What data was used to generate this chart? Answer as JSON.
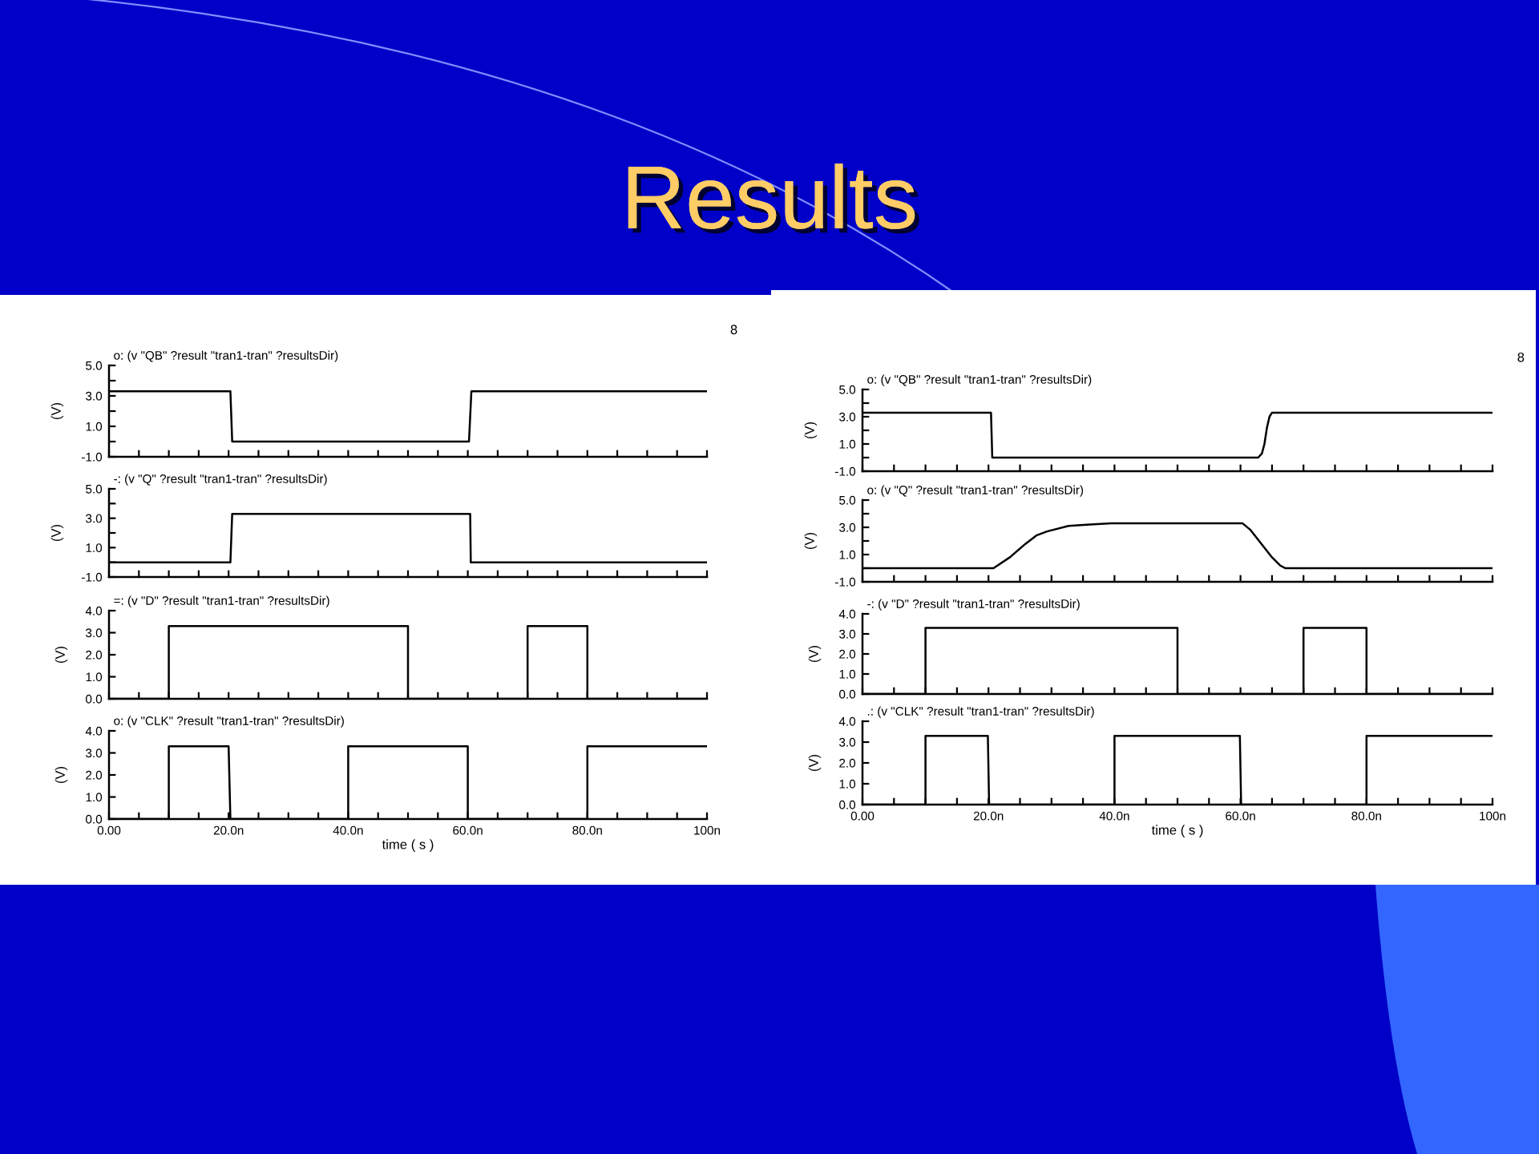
{
  "chart_data": [
    {
      "type": "line",
      "title": "Results",
      "subtitle": "o: (v \"QB\" ?result \"tran1-tran\" ?resultsDir)",
      "ylabel": "(V)",
      "annotations": [
        "8"
      ],
      "tick_labels": "y",
      "xlim": [
        0,
        100
      ],
      "ylim": [
        -1,
        5
      ],
      "xticks": [
        0,
        5,
        10,
        15,
        20,
        25,
        30,
        35,
        40,
        45,
        50,
        55,
        60,
        65,
        70,
        75,
        80,
        85,
        90,
        95,
        100
      ],
      "yticks": [
        {
          "value": -1,
          "label": "-1.0"
        },
        {
          "value": 0,
          "label": null
        },
        {
          "value": 1,
          "label": "1.0"
        },
        {
          "value": 2,
          "label": null
        },
        {
          "value": 3,
          "label": "3.0"
        },
        {
          "value": 4,
          "label": null
        },
        {
          "value": 5,
          "label": "5.0"
        }
      ],
      "series": [
        {
          "color": "#000000",
          "x": [
            0,
            20.3,
            20.6,
            60.2,
            60.6,
            100
          ],
          "values": [
            3.3,
            3.3,
            0,
            0,
            3.3,
            3.3
          ]
        }
      ]
    },
    {
      "type": "line",
      "subtitle": "-: (v \"Q\" ?result \"tran1-tran\" ?resultsDir)",
      "ylabel": "(V)",
      "tick_labels": "y",
      "xlim": [
        0,
        100
      ],
      "ylim": [
        -1,
        5
      ],
      "xticks": [
        0,
        5,
        10,
        15,
        20,
        25,
        30,
        35,
        40,
        45,
        50,
        55,
        60,
        65,
        70,
        75,
        80,
        85,
        90,
        95,
        100
      ],
      "yticks": [
        {
          "value": -1,
          "label": "-1.0"
        },
        {
          "value": 0,
          "label": null
        },
        {
          "value": 1,
          "label": "1.0"
        },
        {
          "value": 2,
          "label": null
        },
        {
          "value": 3,
          "label": "3.0"
        },
        {
          "value": 4,
          "label": null
        },
        {
          "value": 5,
          "label": "5.0"
        }
      ],
      "series": [
        {
          "color": "#000000",
          "x": [
            0,
            20.3,
            20.6,
            60.4,
            60.5,
            100
          ],
          "values": [
            0,
            0,
            3.3,
            3.3,
            0,
            0
          ]
        }
      ]
    },
    {
      "type": "line",
      "subtitle": "=: (v \"D\" ?result \"tran1-tran\" ?resultsDir)",
      "ylabel": "(V)",
      "tick_labels": "y",
      "xlim": [
        0,
        100
      ],
      "ylim": [
        0,
        4
      ],
      "xticks": [
        0,
        5,
        10,
        15,
        20,
        25,
        30,
        35,
        40,
        45,
        50,
        55,
        60,
        65,
        70,
        75,
        80,
        85,
        90,
        95,
        100
      ],
      "yticks": [
        {
          "value": 0,
          "label": "0.0"
        },
        {
          "value": 1,
          "label": "1.0"
        },
        {
          "value": 2,
          "label": "2.0"
        },
        {
          "value": 3,
          "label": "3.0"
        },
        {
          "value": 4,
          "label": "4.0"
        }
      ],
      "series": [
        {
          "color": "#000000",
          "x": [
            0,
            10,
            10,
            50,
            50,
            70,
            70,
            80,
            80,
            100
          ],
          "values": [
            0,
            0,
            3.3,
            3.3,
            0,
            0,
            3.3,
            3.3,
            0,
            0
          ]
        }
      ]
    },
    {
      "type": "line",
      "subtitle": "o: (v \"CLK\" ?result \"tran1-tran\" ?resultsDir)",
      "ylabel": "(V)",
      "xlabel": "time ( s )",
      "xlim": [
        0,
        100
      ],
      "ylim": [
        0,
        4
      ],
      "xticks": [
        {
          "value": 0,
          "label": "0.00"
        },
        {
          "value": 5,
          "label": null
        },
        {
          "value": 10,
          "label": null
        },
        {
          "value": 15,
          "label": null
        },
        {
          "value": 20,
          "label": "20.0n"
        },
        {
          "value": 25,
          "label": null
        },
        {
          "value": 30,
          "label": null
        },
        {
          "value": 35,
          "label": null
        },
        {
          "value": 40,
          "label": "40.0n"
        },
        {
          "value": 45,
          "label": null
        },
        {
          "value": 50,
          "label": null
        },
        {
          "value": 55,
          "label": null
        },
        {
          "value": 60,
          "label": "60.0n"
        },
        {
          "value": 65,
          "label": null
        },
        {
          "value": 70,
          "label": null
        },
        {
          "value": 75,
          "label": null
        },
        {
          "value": 80,
          "label": "80.0n"
        },
        {
          "value": 85,
          "label": null
        },
        {
          "value": 90,
          "label": null
        },
        {
          "value": 95,
          "label": null
        },
        {
          "value": 100,
          "label": "100n"
        }
      ],
      "yticks": [
        {
          "value": 0,
          "label": "0.0"
        },
        {
          "value": 1,
          "label": "1.0"
        },
        {
          "value": 2,
          "label": "2.0"
        },
        {
          "value": 3,
          "label": "3.0"
        },
        {
          "value": 4,
          "label": "4.0"
        }
      ],
      "series": [
        {
          "color": "#000000",
          "x": [
            0,
            10,
            10,
            20,
            20.3,
            40,
            40,
            60,
            60,
            80,
            80,
            100
          ],
          "values": [
            0,
            0,
            3.3,
            3.3,
            0,
            0,
            3.3,
            3.3,
            0,
            0,
            3.3,
            3.3
          ]
        }
      ]
    },
    {
      "type": "line",
      "subtitle": "o: (v \"QB\" ?result \"tran1-tran\" ?resultsDir)",
      "ylabel": "(V)",
      "annotations": [
        "8"
      ],
      "tick_labels": "y",
      "xlim": [
        0,
        100
      ],
      "ylim": [
        -1,
        5
      ],
      "xticks": [
        0,
        5,
        10,
        15,
        20,
        25,
        30,
        35,
        40,
        45,
        50,
        55,
        60,
        65,
        70,
        75,
        80,
        85,
        90,
        95,
        100
      ],
      "yticks": [
        {
          "value": -1,
          "label": "-1.0"
        },
        {
          "value": 0,
          "label": null
        },
        {
          "value": 1,
          "label": "1.0"
        },
        {
          "value": 2,
          "label": null
        },
        {
          "value": 3,
          "label": "3.0"
        },
        {
          "value": 4,
          "label": null
        },
        {
          "value": 5,
          "label": "5.0"
        }
      ],
      "series": [
        {
          "color": "#000000",
          "x": [
            0,
            20.4,
            20.6,
            62.8,
            63.4,
            63.8,
            64.2,
            64.6,
            65,
            100
          ],
          "values": [
            3.3,
            3.3,
            0,
            0,
            0.3,
            1,
            2.2,
            3,
            3.3,
            3.3
          ]
        }
      ]
    },
    {
      "type": "line",
      "subtitle": "o: (v \"Q\" ?result \"tran1-tran\" ?resultsDir)",
      "ylabel": "(V)",
      "tick_labels": "y",
      "xlim": [
        0,
        100
      ],
      "ylim": [
        -1,
        5
      ],
      "xticks": [
        0,
        5,
        10,
        15,
        20,
        25,
        30,
        35,
        40,
        45,
        50,
        55,
        60,
        65,
        70,
        75,
        80,
        85,
        90,
        95,
        100
      ],
      "yticks": [
        {
          "value": -1,
          "label": "-1.0"
        },
        {
          "value": 0,
          "label": null
        },
        {
          "value": 1,
          "label": "1.0"
        },
        {
          "value": 2,
          "label": null
        },
        {
          "value": 3,
          "label": "3.0"
        },
        {
          "value": 4,
          "label": null
        },
        {
          "value": 5,
          "label": "5.0"
        }
      ],
      "series": [
        {
          "color": "#000000",
          "x": [
            0,
            20.8,
            23.4,
            25.9,
            27.6,
            29.3,
            32.7,
            36.1,
            39.5,
            60.3,
            61.6,
            63.3,
            65,
            66.3,
            67.1,
            100
          ],
          "values": [
            0,
            0,
            0.8,
            1.8,
            2.4,
            2.7,
            3.1,
            3.2,
            3.3,
            3.3,
            2.8,
            1.8,
            0.8,
            0.2,
            0,
            0
          ]
        }
      ]
    },
    {
      "type": "line",
      "subtitle": "-: (v \"D\" ?result \"tran1-tran\" ?resultsDir)",
      "ylabel": "(V)",
      "tick_labels": "y",
      "xlim": [
        0,
        100
      ],
      "ylim": [
        0,
        4
      ],
      "xticks": [
        0,
        5,
        10,
        15,
        20,
        25,
        30,
        35,
        40,
        45,
        50,
        55,
        60,
        65,
        70,
        75,
        80,
        85,
        90,
        95,
        100
      ],
      "yticks": [
        {
          "value": 0,
          "label": "0.0"
        },
        {
          "value": 1,
          "label": "1.0"
        },
        {
          "value": 2,
          "label": "2.0"
        },
        {
          "value": 3,
          "label": "3.0"
        },
        {
          "value": 4,
          "label": "4.0"
        }
      ],
      "series": [
        {
          "color": "#000000",
          "x": [
            0,
            10,
            10,
            50,
            50,
            70,
            70,
            80,
            80,
            100
          ],
          "values": [
            0,
            0,
            3.3,
            3.3,
            0,
            0,
            3.3,
            3.3,
            0,
            0
          ]
        }
      ]
    },
    {
      "type": "line",
      "subtitle": ".: (v \"CLK\" ?result \"tran1-tran\" ?resultsDir)",
      "ylabel": "(V)",
      "xlabel": "time ( s )",
      "xlim": [
        0,
        100
      ],
      "ylim": [
        0,
        4
      ],
      "xticks": [
        {
          "value": 0,
          "label": "0.00"
        },
        {
          "value": 5,
          "label": null
        },
        {
          "value": 10,
          "label": null
        },
        {
          "value": 15,
          "label": null
        },
        {
          "value": 20,
          "label": "20.0n"
        },
        {
          "value": 25,
          "label": null
        },
        {
          "value": 30,
          "label": null
        },
        {
          "value": 35,
          "label": null
        },
        {
          "value": 40,
          "label": "40.0n"
        },
        {
          "value": 45,
          "label": null
        },
        {
          "value": 50,
          "label": null
        },
        {
          "value": 55,
          "label": null
        },
        {
          "value": 60,
          "label": "60.0n"
        },
        {
          "value": 65,
          "label": null
        },
        {
          "value": 70,
          "label": null
        },
        {
          "value": 75,
          "label": null
        },
        {
          "value": 80,
          "label": "80.0n"
        },
        {
          "value": 85,
          "label": null
        },
        {
          "value": 90,
          "label": null
        },
        {
          "value": 95,
          "label": null
        },
        {
          "value": 100,
          "label": "100n"
        }
      ],
      "yticks": [
        {
          "value": 0,
          "label": "0.0"
        },
        {
          "value": 1,
          "label": "1.0"
        },
        {
          "value": 2,
          "label": "2.0"
        },
        {
          "value": 3,
          "label": "3.0"
        },
        {
          "value": 4,
          "label": "4.0"
        }
      ],
      "series": [
        {
          "color": "#000000",
          "x": [
            0,
            10,
            10,
            19.9,
            20.1,
            40,
            40,
            59.9,
            60.1,
            80,
            80,
            100
          ],
          "values": [
            0,
            0,
            3.3,
            3.3,
            0,
            0,
            3.3,
            3.3,
            0,
            0,
            3.3,
            3.3
          ]
        }
      ]
    }
  ]
}
